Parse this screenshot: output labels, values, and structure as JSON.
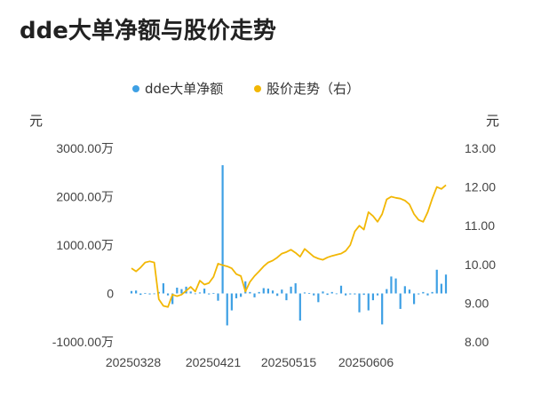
{
  "chart_data": {
    "type": "bar+line",
    "title": "dde大单净额与股价走势",
    "legend": {
      "position": "top-center"
    },
    "x_ticks": [
      "20250328",
      "20250421",
      "20250515",
      "20250606"
    ],
    "series": [
      {
        "name": "dde大单净额",
        "type": "bar",
        "axis": "left",
        "color": "#3ea0e4",
        "values": [
          50,
          60,
          -30,
          10,
          -20,
          0,
          30,
          210,
          -40,
          -220,
          120,
          90,
          140,
          40,
          -10,
          20,
          100,
          -20,
          10,
          -150,
          2650,
          -660,
          -350,
          -100,
          -70,
          250,
          30,
          -80,
          30,
          110,
          100,
          60,
          -50,
          80,
          -140,
          140,
          210,
          -560,
          20,
          10,
          -40,
          -180,
          40,
          -30,
          30,
          -10,
          160,
          -40,
          -20,
          -20,
          -390,
          -30,
          -350,
          -140,
          -40,
          -640,
          90,
          350,
          310,
          -320,
          150,
          80,
          -220,
          -20,
          30,
          -40,
          30,
          490,
          200,
          390
        ]
      },
      {
        "name": "股价走势（右）",
        "type": "line",
        "axis": "right",
        "color": "#f2b705",
        "values": [
          9.9,
          9.82,
          9.92,
          10.05,
          10.08,
          10.05,
          9.1,
          8.93,
          8.9,
          9.22,
          9.18,
          9.22,
          9.32,
          9.42,
          9.3,
          9.58,
          9.48,
          9.52,
          9.68,
          10.02,
          9.98,
          9.95,
          9.9,
          9.75,
          9.7,
          9.3,
          9.55,
          9.7,
          9.82,
          9.95,
          10.05,
          10.1,
          10.18,
          10.28,
          10.32,
          10.38,
          10.3,
          10.2,
          10.4,
          10.3,
          10.2,
          10.15,
          10.12,
          10.18,
          10.22,
          10.25,
          10.28,
          10.35,
          10.5,
          10.85,
          11.0,
          10.9,
          11.35,
          11.25,
          11.1,
          11.3,
          11.68,
          11.75,
          11.72,
          11.7,
          11.65,
          11.55,
          11.3,
          11.15,
          11.1,
          11.35,
          11.7,
          12.0,
          11.95,
          12.05
        ]
      }
    ],
    "y_left": {
      "unit": "元",
      "min": -1000,
      "max": 3000,
      "tick_labels": [
        "3000.00万",
        "2000.00万",
        "1000.00万",
        "0",
        "-1000.00万"
      ],
      "tick_values": [
        3000,
        2000,
        1000,
        0,
        -1000
      ]
    },
    "y_right": {
      "unit": "元",
      "min": 8,
      "max": 13,
      "tick_labels": [
        "13.00",
        "12.00",
        "11.00",
        "10.00",
        "9.00",
        "8.00"
      ],
      "tick_values": [
        13,
        12,
        11,
        10,
        9,
        8
      ]
    },
    "grid": false
  }
}
